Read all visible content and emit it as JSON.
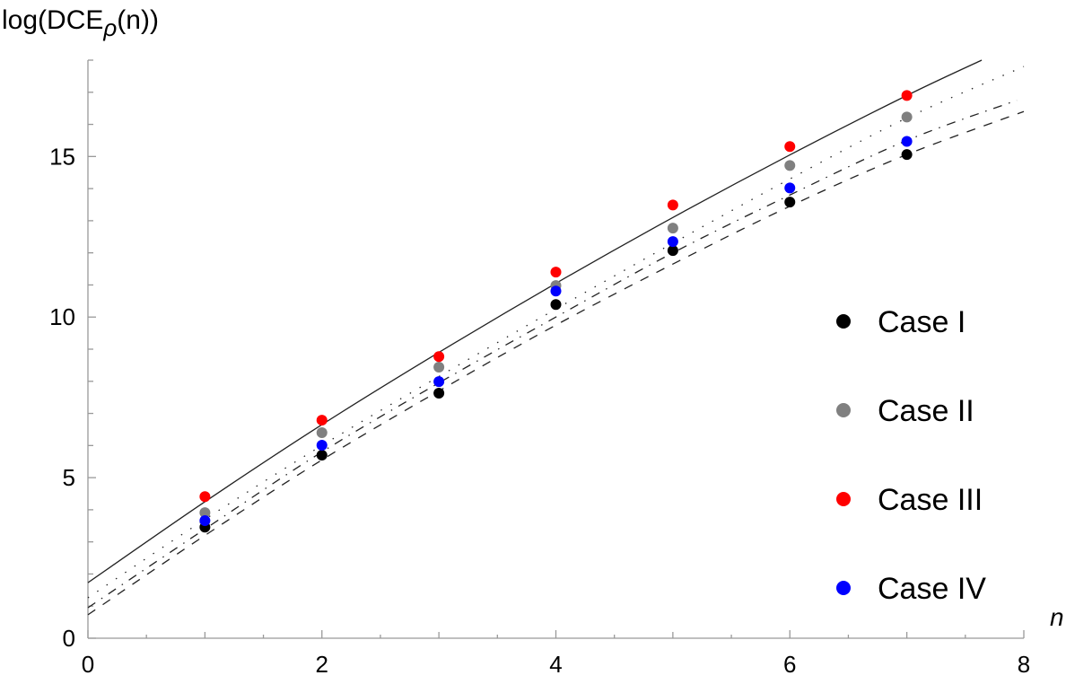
{
  "chart_data": {
    "type": "scatter",
    "title": "",
    "xlabel": "n",
    "ylabel": {
      "prefix": "log(DCE",
      "subscript": "ρ",
      "suffix": "(n))"
    },
    "xlim": [
      0,
      8
    ],
    "ylim": [
      0,
      18
    ],
    "x_ticks": [
      0,
      2,
      4,
      6,
      8
    ],
    "y_ticks": [
      0,
      5,
      10,
      15
    ],
    "grid": false,
    "legend_placement": "right",
    "series": [
      {
        "name": "Case I",
        "color": "#000000",
        "x": [
          1,
          2,
          3,
          4,
          5,
          6,
          7
        ],
        "y": [
          3.46,
          5.7,
          7.63,
          10.39,
          12.07,
          13.58,
          15.06
        ]
      },
      {
        "name": "Case II",
        "color": "#808080",
        "x": [
          1,
          2,
          3,
          4,
          5,
          6,
          7
        ],
        "y": [
          3.91,
          6.4,
          8.44,
          10.98,
          12.77,
          14.72,
          16.23
        ]
      },
      {
        "name": "Case III",
        "color": "#ff0000",
        "x": [
          1,
          2,
          3,
          4,
          5,
          6,
          7
        ],
        "y": [
          4.41,
          6.79,
          8.77,
          11.4,
          13.49,
          15.31,
          16.9
        ]
      },
      {
        "name": "Case IV",
        "color": "#0000ff",
        "x": [
          1,
          2,
          3,
          4,
          5,
          6,
          7
        ],
        "y": [
          3.66,
          6.01,
          7.99,
          10.81,
          12.35,
          14.02,
          15.47
        ]
      }
    ],
    "curves": [
      {
        "style": "solid",
        "x": [
          0,
          1,
          2,
          3,
          4,
          5,
          6,
          7,
          7.64
        ],
        "y": [
          1.73,
          4.25,
          6.65,
          8.9,
          11.05,
          13.1,
          15.05,
          16.9,
          18.0
        ]
      },
      {
        "style": "dotted",
        "x": [
          0,
          1,
          2,
          3,
          4,
          5,
          6,
          7,
          8
        ],
        "y": [
          1.26,
          3.7,
          6.0,
          8.15,
          10.25,
          12.3,
          14.3,
          16.2,
          17.8
        ]
      },
      {
        "style": "dash-dot",
        "x": [
          0,
          1,
          2,
          3,
          4,
          5,
          6,
          7,
          7.94
        ],
        "y": [
          0.95,
          3.4,
          5.8,
          7.95,
          10.0,
          12.0,
          13.8,
          15.5,
          16.75
        ]
      },
      {
        "style": "dashed",
        "x": [
          0,
          1,
          2,
          3,
          4,
          5,
          6,
          7,
          8
        ],
        "y": [
          0.73,
          3.2,
          5.55,
          7.7,
          9.75,
          11.65,
          13.45,
          15.06,
          16.4
        ]
      }
    ]
  }
}
